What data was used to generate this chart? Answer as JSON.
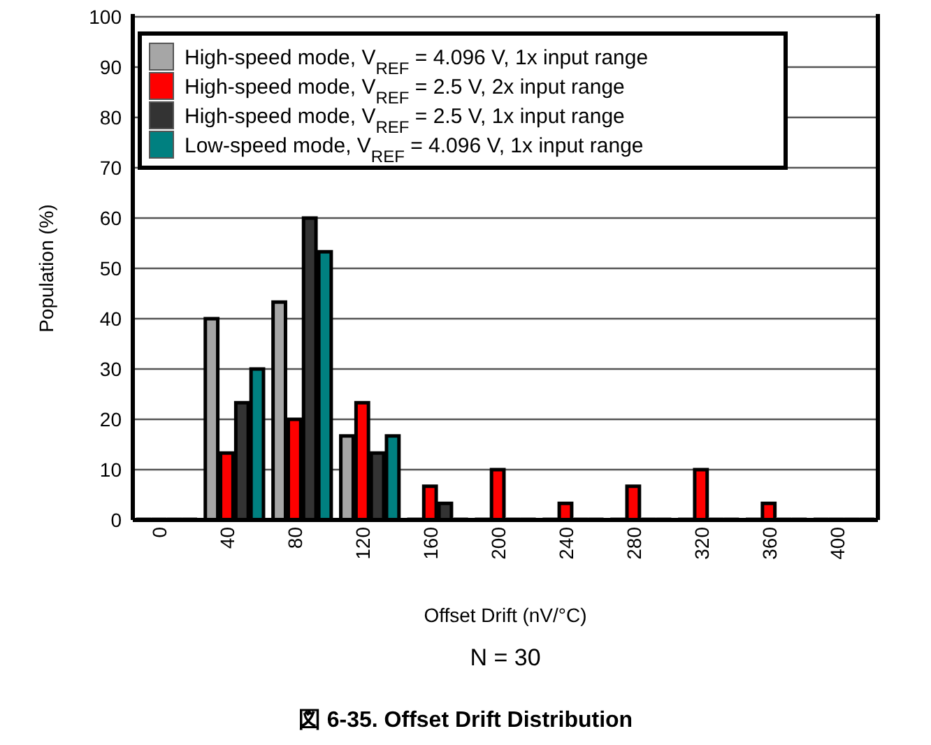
{
  "chart_data": {
    "type": "bar",
    "title": "図 6-35. Offset Drift Distribution",
    "xlabel": "Offset Drift (nV/°C)",
    "ylabel": "Population (%)",
    "annotations": [
      "N = 30"
    ],
    "categories": [
      "0",
      "40",
      "80",
      "120",
      "160",
      "200",
      "240",
      "280",
      "320",
      "360",
      "400"
    ],
    "series": [
      {
        "name": "High-speed mode, V$_{REF}$ = 4.096 V, 1x input range",
        "color": "#a6a6a6",
        "values": [
          0,
          40,
          43.3,
          16.7,
          0,
          0,
          0,
          0,
          0,
          0,
          0
        ]
      },
      {
        "name": "High-speed mode, V$_{REF}$ = 2.5 V, 2x input range",
        "color": "#ff0000",
        "values": [
          0,
          13.3,
          20,
          23.3,
          6.7,
          10,
          3.3,
          6.7,
          10,
          3.3,
          0
        ]
      },
      {
        "name": "High-speed mode, V$_{REF}$ = 2.5 V, 1x input range",
        "color": "#333333",
        "values": [
          0,
          23.3,
          60,
          13.3,
          3.3,
          0,
          0,
          0,
          0,
          0,
          0
        ]
      },
      {
        "name": "Low-speed mode, V$_{REF}$ = 4.096 V, 1x input range",
        "color": "#008080",
        "values": [
          0,
          30,
          53.3,
          16.7,
          0,
          0,
          0,
          0,
          0,
          0,
          0
        ]
      }
    ],
    "ylim": [
      0,
      100
    ],
    "yticks": [
      0,
      10,
      20,
      30,
      40,
      50,
      60,
      70,
      80,
      90,
      100
    ],
    "grid": "y",
    "legend": "top left"
  }
}
